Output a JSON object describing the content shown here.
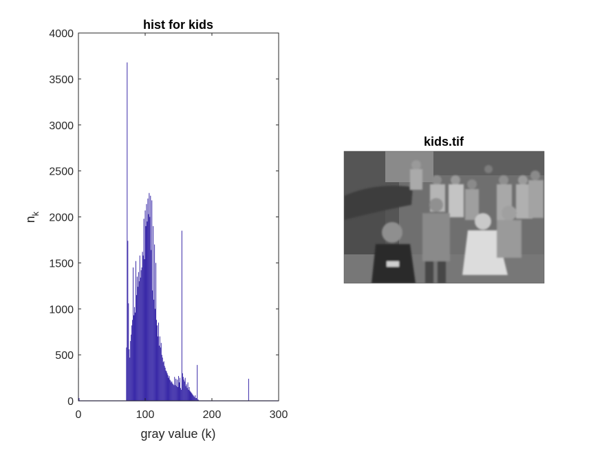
{
  "colors": {
    "bar": "#3a2aa8",
    "axis": "#262626",
    "background": "#ffffff"
  },
  "chart_data": [
    {
      "type": "bar",
      "title": "hist for kids",
      "xlabel": "gray value (k)",
      "ylabel": "n",
      "ylabel_subscript": "k",
      "xlim": [
        0,
        300
      ],
      "ylim": [
        0,
        4000
      ],
      "xticks": [
        "0",
        "100",
        "200",
        "300"
      ],
      "yticks": [
        "0",
        "500",
        "1000",
        "1500",
        "2000",
        "2500",
        "3000",
        "3500",
        "4000"
      ],
      "grid": false,
      "x": [
        0,
        1,
        72,
        73,
        74,
        75,
        76,
        77,
        78,
        79,
        80,
        81,
        82,
        83,
        84,
        85,
        86,
        87,
        88,
        89,
        90,
        91,
        92,
        93,
        94,
        95,
        96,
        97,
        98,
        99,
        100,
        101,
        102,
        103,
        104,
        105,
        106,
        107,
        108,
        109,
        110,
        111,
        112,
        113,
        114,
        115,
        116,
        117,
        118,
        119,
        120,
        121,
        122,
        123,
        124,
        125,
        126,
        127,
        128,
        129,
        130,
        131,
        132,
        133,
        134,
        135,
        136,
        137,
        138,
        139,
        140,
        141,
        142,
        143,
        144,
        145,
        146,
        147,
        148,
        149,
        150,
        151,
        152,
        153,
        154,
        155,
        156,
        157,
        158,
        159,
        160,
        161,
        162,
        163,
        164,
        165,
        166,
        167,
        168,
        169,
        170,
        171,
        172,
        173,
        174,
        175,
        176,
        177,
        178,
        179,
        180,
        255
      ],
      "values": [
        360,
        30,
        580,
        3680,
        1740,
        1060,
        560,
        470,
        650,
        720,
        820,
        880,
        1450,
        930,
        1020,
        960,
        1520,
        1150,
        1350,
        1240,
        1400,
        1300,
        1580,
        1340,
        1420,
        1450,
        1620,
        1580,
        1980,
        1540,
        2070,
        1900,
        2140,
        1950,
        2200,
        2030,
        2260,
        2000,
        2230,
        1640,
        2180,
        1200,
        1900,
        1100,
        1700,
        1000,
        1500,
        880,
        820,
        700,
        850,
        600,
        700,
        580,
        630,
        500,
        470,
        420,
        430,
        380,
        360,
        330,
        320,
        300,
        280,
        250,
        270,
        230,
        220,
        200,
        210,
        190,
        180,
        170,
        260,
        170,
        240,
        160,
        230,
        150,
        270,
        200,
        250,
        140,
        120,
        1850,
        300,
        260,
        230,
        210,
        250,
        160,
        180,
        140,
        200,
        120,
        150,
        110,
        100,
        90,
        80,
        70,
        60,
        50,
        40,
        60,
        30,
        30,
        390,
        15,
        10,
        240
      ]
    },
    {
      "type": "image",
      "title": "kids.tif"
    }
  ]
}
